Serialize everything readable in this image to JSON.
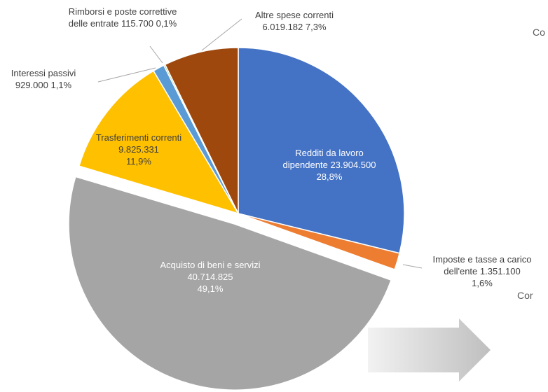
{
  "chart_data": {
    "type": "pie",
    "categories": [
      "Redditi da lavoro dipendente",
      "Imposte e tasse a carico dell'ente",
      "Acquisto di beni e servizi",
      "Trasferimenti correnti",
      "Interessi passivi",
      "Rimborsi e poste correttive delle entrate",
      "Altre spese correnti"
    ],
    "values": [
      23904500,
      1351100,
      40714825,
      9825331,
      929000,
      115700,
      6019182
    ],
    "value_labels": [
      "23.904.500",
      "1.351.100",
      "40.714.825",
      "9.825.331",
      "929.000",
      "115.700",
      "6.019.182"
    ],
    "percent_labels": [
      "28,8%",
      "1,6%",
      "49,1%",
      "11,9%",
      "1,1%",
      "0,1%",
      "7,3%"
    ],
    "colors": [
      "#4472c4",
      "#ed7d31",
      "#a5a5a5",
      "#ffc000",
      "#5b9bd5",
      "#70ad47",
      "#9e480e"
    ],
    "annotations": [
      "Co",
      "Cor"
    ]
  }
}
